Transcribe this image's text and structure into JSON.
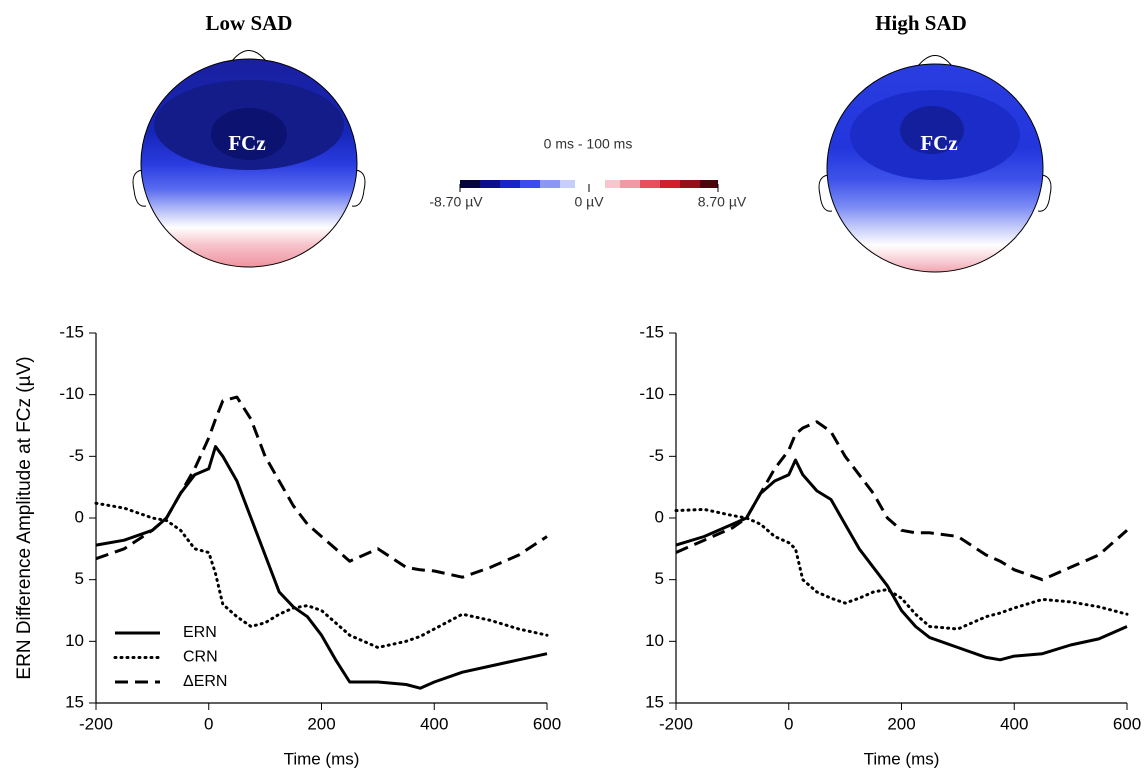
{
  "topomaps": {
    "maps": [
      {
        "title": "Low SAD",
        "electrode": "FCz"
      },
      {
        "title": "High SAD",
        "electrode": "FCz"
      }
    ],
    "colorbar": {
      "title": "0 ms - 100 ms",
      "labels": [
        "-8.70 µV",
        "0 µV",
        "8.70 µV"
      ]
    }
  },
  "chart_data": [
    {
      "type": "line",
      "ylabel": "ERN Difference Amplitude at FCz (µV)",
      "xlabel": "Time (ms)",
      "xlim": [
        -200,
        600
      ],
      "xticks": [
        -200,
        0,
        200,
        400,
        600
      ],
      "ylim": [
        15,
        -15
      ],
      "yticks": [
        -15,
        -10,
        -5,
        0,
        5,
        10,
        15
      ],
      "legend": "lower left",
      "x": [
        -200,
        -150,
        -100,
        -75,
        -50,
        -25,
        0,
        12,
        25,
        50,
        75,
        100,
        125,
        150,
        175,
        200,
        225,
        250,
        300,
        350,
        375,
        400,
        450,
        500,
        550,
        600
      ],
      "series": [
        {
          "name": "ERN",
          "color": "#000000",
          "linestyle": "solid",
          "values": [
            2.2,
            1.8,
            1,
            0,
            -2,
            -3.5,
            -4,
            -5.8,
            -5,
            -3,
            0,
            3,
            6,
            7.2,
            8,
            9.5,
            11.5,
            13.3,
            13.3,
            13.5,
            13.8,
            13.3,
            12.5,
            12,
            11.5,
            11
          ]
        },
        {
          "name": "CRN",
          "color": "#000000",
          "linestyle": "dotted",
          "values": [
            -1.2,
            -0.8,
            0,
            0.2,
            1,
            2.5,
            2.8,
            4.5,
            7,
            8,
            8.8,
            8.5,
            7.8,
            7.3,
            7.1,
            7.5,
            8.5,
            9.5,
            10.5,
            10,
            9.6,
            9,
            7.8,
            8.3,
            9,
            9.5
          ]
        },
        {
          "name": "ΔERN",
          "color": "#000000",
          "linestyle": "dashed",
          "values": [
            3.3,
            2.5,
            1,
            0,
            -2,
            -4,
            -6.5,
            -8,
            -9.5,
            -9.8,
            -8,
            -5,
            -3,
            -1,
            0.5,
            1.5,
            2.5,
            3.5,
            2.5,
            4,
            4.2,
            4.3,
            4.8,
            4,
            3,
            1.5
          ]
        }
      ]
    },
    {
      "type": "line",
      "xlabel": "Time (ms)",
      "xlim": [
        -200,
        600
      ],
      "xticks": [
        -200,
        0,
        200,
        400,
        600
      ],
      "ylim": [
        15,
        -15
      ],
      "yticks": [
        -15,
        -10,
        -5,
        0,
        5,
        10,
        15
      ],
      "x": [
        -200,
        -150,
        -100,
        -75,
        -50,
        -25,
        0,
        12,
        25,
        50,
        75,
        100,
        125,
        150,
        175,
        200,
        225,
        250,
        300,
        350,
        375,
        400,
        450,
        500,
        550,
        600
      ],
      "series": [
        {
          "color": "#000000",
          "linestyle": "solid",
          "values": [
            2.2,
            1.5,
            0.5,
            0,
            -2,
            -3,
            -3.5,
            -4.7,
            -3.5,
            -2.2,
            -1.5,
            0.5,
            2.5,
            4,
            5.5,
            7.5,
            8.8,
            9.7,
            10.5,
            11.3,
            11.5,
            11.2,
            11,
            10.3,
            9.8,
            8.8
          ]
        },
        {
          "color": "#000000",
          "linestyle": "dotted",
          "values": [
            -0.6,
            -0.7,
            -0.2,
            0,
            0.5,
            1.5,
            2,
            2.5,
            5,
            6,
            6.5,
            6.9,
            6.5,
            6,
            5.8,
            6.5,
            7.8,
            8.8,
            9,
            8,
            7.7,
            7.3,
            6.6,
            6.8,
            7.2,
            7.8
          ]
        },
        {
          "color": "#000000",
          "linestyle": "dashed",
          "values": [
            2.8,
            1.8,
            0.8,
            0,
            -2,
            -4,
            -5.5,
            -6.8,
            -7.3,
            -7.8,
            -7,
            -5,
            -3.5,
            -2,
            0,
            1,
            1.2,
            1.2,
            1.5,
            3,
            3.5,
            4.2,
            5,
            4,
            3,
            1
          ]
        }
      ]
    }
  ]
}
